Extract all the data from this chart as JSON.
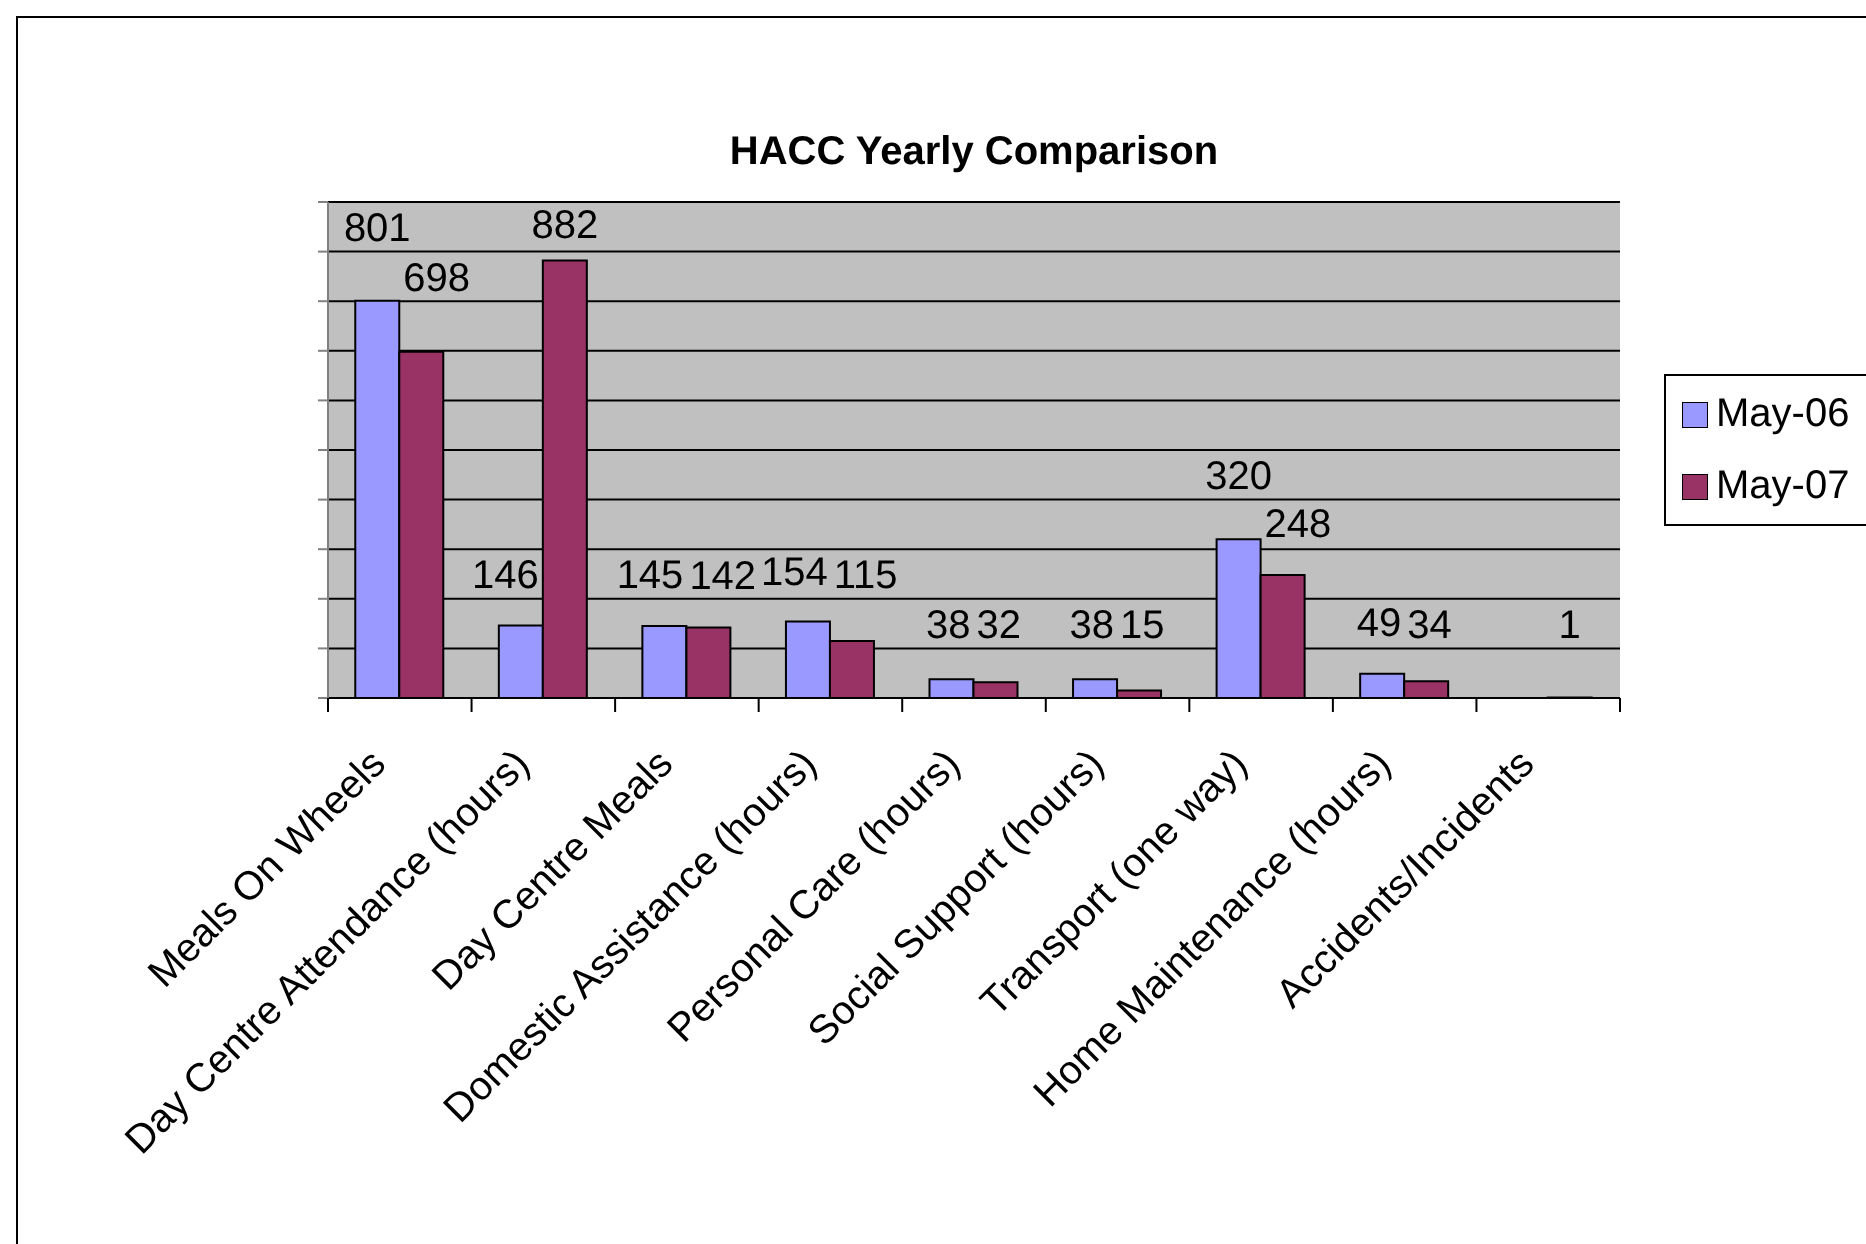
{
  "chart_data": {
    "type": "bar",
    "title": "HACC Yearly Comparison",
    "categories": [
      "Meals On Wheels",
      "Day Centre Attendance (hours)",
      "Day Centre Meals",
      "Domestic Assistance (hours)",
      "Personal Care (hours)",
      "Social Support (hours)",
      "Transport (one way)",
      "Home Maintenance (hours)",
      "Accidents/Incidents"
    ],
    "series": [
      {
        "name": "May-06",
        "color": "#9999ff",
        "values": [
          801,
          146,
          145,
          154,
          38,
          38,
          320,
          49,
          null
        ]
      },
      {
        "name": "May-07",
        "color": "#993366",
        "values": [
          698,
          882,
          142,
          115,
          32,
          15,
          248,
          34,
          1
        ]
      }
    ],
    "ylim": [
      0,
      1000
    ],
    "yticks": [
      {
        "value": 0,
        "label": null
      },
      {
        "value": 100,
        "label": null
      },
      {
        "value": 200,
        "label": null
      },
      {
        "value": 300,
        "label": null
      },
      {
        "value": 400,
        "label": null
      },
      {
        "value": 500,
        "label": null
      },
      {
        "value": 600,
        "label": null
      },
      {
        "value": 700,
        "label": null
      },
      {
        "value": 800,
        "label": null
      },
      {
        "value": 900,
        "label": null
      },
      {
        "value": 1000,
        "label": null
      }
    ],
    "grid": "y",
    "legend": "right",
    "tick_labels": "x",
    "data_labels": true
  }
}
